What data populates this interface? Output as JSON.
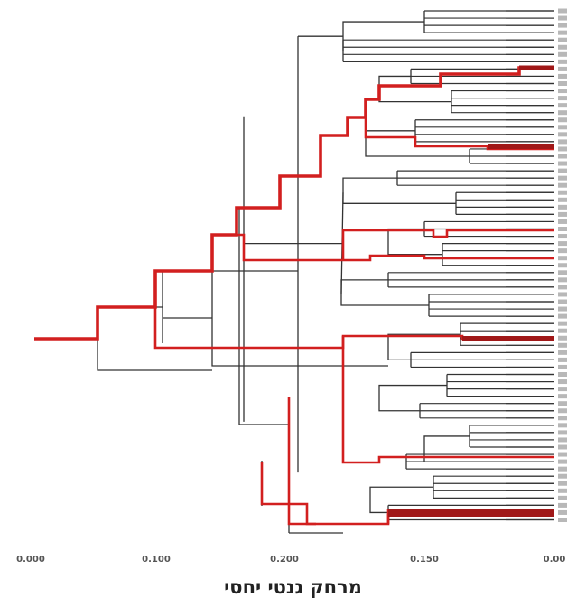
{
  "diagram": {
    "type": "dendrogram",
    "x_axis": {
      "title": "מרחק גנטי יחסי",
      "ticks": [
        "0.000",
        "0.100",
        "0.200",
        "0.150",
        "0.00"
      ]
    },
    "colors": {
      "base_branch": "#333333",
      "highlighted_branch": "#d21f1f",
      "dark_highlight": "#a01818",
      "leaf_label": "#888888"
    }
  }
}
